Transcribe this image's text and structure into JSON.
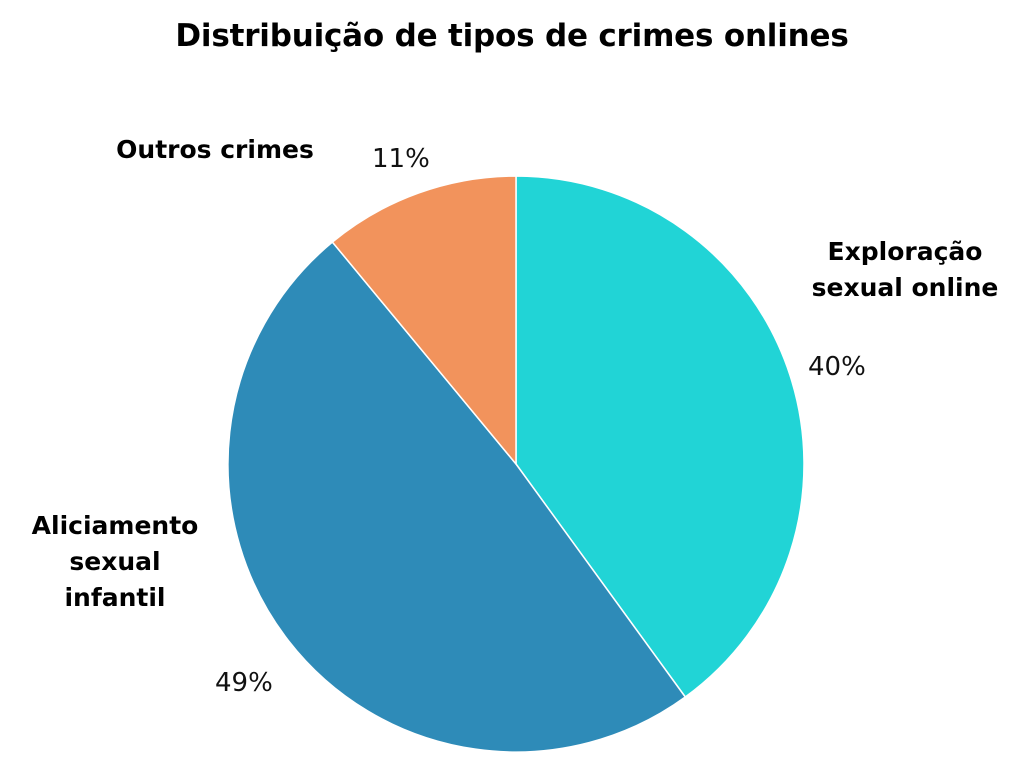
{
  "chart_data": {
    "type": "pie",
    "title": "Distribuição de tipos de crimes onlines",
    "slices": [
      {
        "label": "Exploração sexual online",
        "label_lines": [
          "Exploração",
          "sexual online"
        ],
        "value": 40,
        "value_label": "40%",
        "color": "#21D4D6"
      },
      {
        "label": "Aliciamento sexual infantil",
        "label_lines": [
          "Aliciamento",
          "sexual",
          "infantil"
        ],
        "value": 49,
        "value_label": "49%",
        "color": "#2E8BB8"
      },
      {
        "label": "Outros crimes",
        "label_lines": [
          "Outros crimes"
        ],
        "value": 11,
        "value_label": "11%",
        "color": "#F2935C"
      }
    ],
    "start_angle_deg": 0,
    "direction": "clockwise",
    "legend": "none"
  }
}
